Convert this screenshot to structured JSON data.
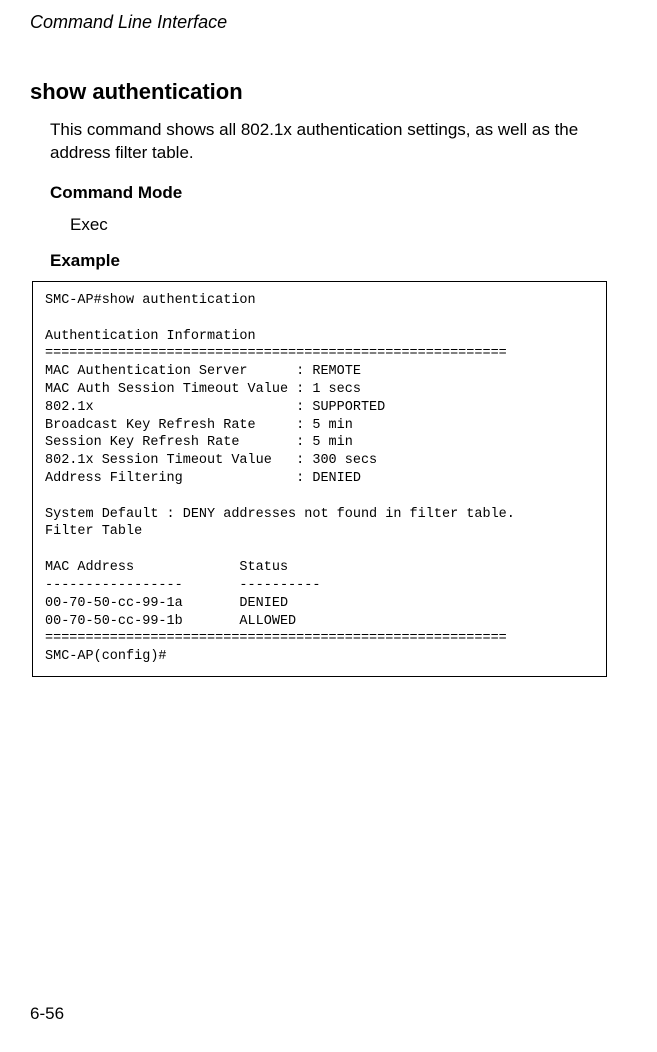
{
  "header": {
    "title": "Command Line Interface"
  },
  "command": {
    "name": "show authentication",
    "description": "This command shows all 802.1x authentication settings, as well as the address filter table."
  },
  "sections": {
    "command_mode_heading": "Command Mode",
    "command_mode_value": "Exec",
    "example_heading": "Example"
  },
  "example": {
    "lines": [
      "SMC-AP#show authentication",
      "",
      "Authentication Information",
      "=========================================================",
      "MAC Authentication Server      : REMOTE",
      "MAC Auth Session Timeout Value : 1 secs",
      "802.1x                         : SUPPORTED",
      "Broadcast Key Refresh Rate     : 5 min",
      "Session Key Refresh Rate       : 5 min",
      "802.1x Session Timeout Value   : 300 secs",
      "Address Filtering              : DENIED",
      "",
      "System Default : DENY addresses not found in filter table.",
      "Filter Table",
      "",
      "MAC Address             Status",
      "-----------------       ----------",
      "00-70-50-cc-99-1a       DENIED",
      "00-70-50-cc-99-1b       ALLOWED",
      "=========================================================",
      "SMC-AP(config)#"
    ]
  },
  "page_number": "6-56"
}
